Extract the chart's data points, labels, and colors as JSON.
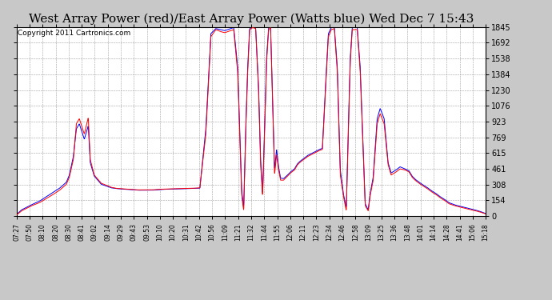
{
  "title": "West Array Power (red)/East Array Power (Watts blue) Wed Dec 7 15:43",
  "copyright": "Copyright 2011 Cartronics.com",
  "yticks": [
    0.0,
    153.8,
    307.6,
    461.3,
    615.1,
    768.9,
    922.7,
    1076.5,
    1230.2,
    1384.0,
    1537.8,
    1691.6,
    1845.4
  ],
  "ymax": 1845.4,
  "ymin": 0.0,
  "xtick_labels": [
    "07:27",
    "07:50",
    "08:10",
    "08:20",
    "08:30",
    "08:41",
    "09:02",
    "09:14",
    "09:29",
    "09:43",
    "09:53",
    "10:10",
    "10:20",
    "10:31",
    "10:42",
    "10:56",
    "11:09",
    "11:21",
    "11:32",
    "11:44",
    "11:55",
    "12:06",
    "12:11",
    "12:23",
    "12:34",
    "12:46",
    "12:58",
    "13:09",
    "13:25",
    "13:36",
    "13:48",
    "14:01",
    "14:14",
    "14:28",
    "14:41",
    "15:06",
    "15:18"
  ],
  "bg_color": "#c8c8c8",
  "plot_bg": "#ffffff",
  "grid_color": "#888888",
  "line_red": "#ff0000",
  "line_blue": "#0000ff",
  "title_fontsize": 11,
  "copyright_fontsize": 6.5
}
